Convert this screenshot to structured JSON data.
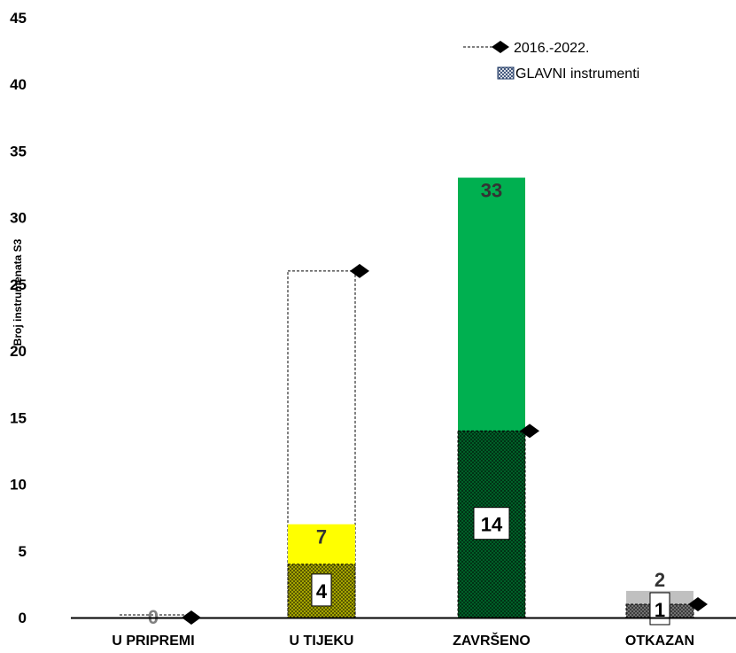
{
  "chart_data": {
    "type": "bar",
    "ylabel": "Broj instrumenata S3",
    "ylim": [
      0,
      45
    ],
    "yticks": [
      0,
      5,
      10,
      15,
      20,
      25,
      30,
      35,
      40,
      45
    ],
    "grid": false,
    "legend_position": "top-right",
    "categories": [
      "U PRIPREMI",
      "U TIJEKU",
      "ZAVRŠENO",
      "OTKAZAN"
    ],
    "series": [
      {
        "name": "2016.-2022.",
        "kind": "line-markers",
        "values": [
          0,
          26,
          14,
          1
        ],
        "color": "#000000"
      },
      {
        "name": "",
        "kind": "bar-total",
        "values": [
          0,
          7,
          33,
          2
        ],
        "colors": [
          "#bfbfbf",
          "#ffff00",
          "#00b050",
          "#c0c0c0"
        ],
        "label_colors": [
          "#808080",
          "#333333",
          "#333333",
          "#333333"
        ]
      },
      {
        "name": "GLAVNI instrumenti",
        "kind": "bar-hatched",
        "values": [
          0,
          4,
          14,
          1
        ],
        "colors": [
          "#808080",
          "#b8b800",
          "#006b2d",
          "#808080"
        ]
      }
    ]
  }
}
